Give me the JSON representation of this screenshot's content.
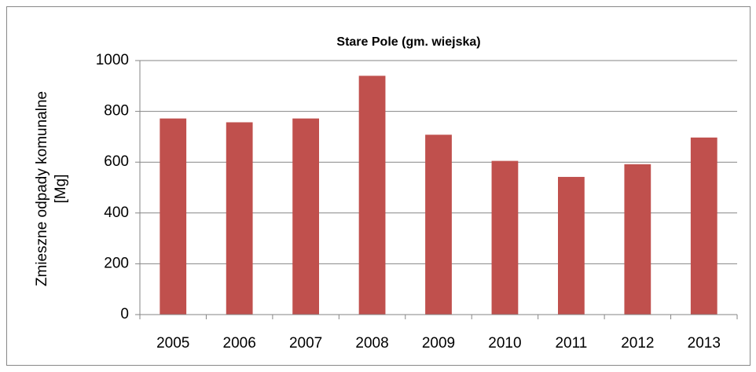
{
  "chart_data": {
    "type": "bar",
    "title": "Stare Pole (gm. wiejska)",
    "y_label": [
      "Zmieszne odpady komunalne",
      "[Mg]"
    ],
    "categories": [
      "2005",
      "2006",
      "2007",
      "2008",
      "2009",
      "2010",
      "2011",
      "2012",
      "2013"
    ],
    "values": [
      772,
      757,
      772,
      940,
      708,
      605,
      542,
      592,
      697
    ],
    "color": "#c0504d",
    "ylim": [
      0,
      1000
    ],
    "yticks": [
      0,
      200,
      400,
      600,
      800,
      1000
    ],
    "grid": true
  }
}
